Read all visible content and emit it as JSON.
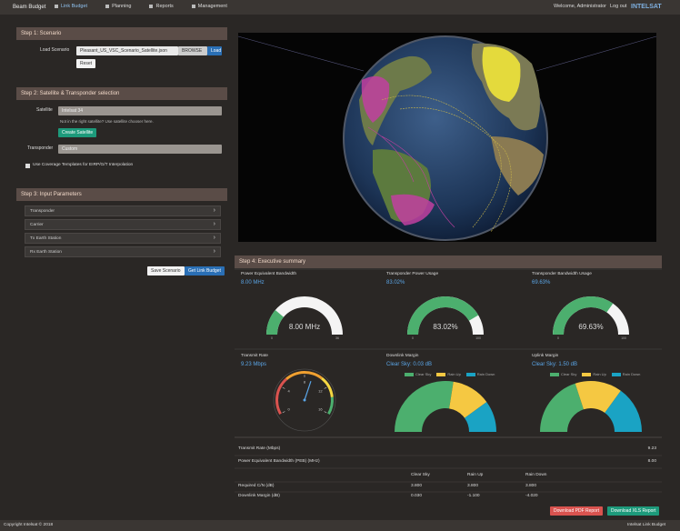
{
  "nav": {
    "brand": "Beam Budget",
    "items": [
      "Link Budget",
      "Planning",
      "Reports",
      "Management"
    ],
    "user": "Welcome, Administrator",
    "logout": "Log out",
    "logo": "INTELSAT"
  },
  "step1": {
    "title": "Step 1: Scenario",
    "label": "Load Scenario",
    "file": "Pleasant_US_VSC_Scenario_Satellite.json",
    "browse": "BROWSE",
    "load": "Load",
    "reset": "Reset"
  },
  "step2": {
    "title": "Step 2: Satellite & Transponder selection",
    "satellite_label": "Satellite",
    "satellite": "Intelsat 34",
    "hint": "Not in the right satellite? Use satellite chooser here.",
    "create": "Create Satellite",
    "transponder_label": "Transponder",
    "transponder": "Custom",
    "checkbox": "Use Coverage Templates for EIRP/G/T Interpolation"
  },
  "step3": {
    "title": "Step 3: Input Parameters",
    "rows": [
      "Transponder",
      "Carrier",
      "Tx Earth Station",
      "Rx Earth Station"
    ],
    "save": "Save Scenario",
    "get": "Get Link Budget"
  },
  "step4": {
    "title": "Step 4: Executive summary",
    "gauges": [
      {
        "title": "Power Equivalent Bandwidth",
        "value": 8,
        "value_label": "8.00 MHz",
        "min": 0,
        "max": 36
      },
      {
        "title": "Transponder Power Usage",
        "value": 83.02,
        "value_label": "83.02%",
        "min": 0,
        "max": 100
      },
      {
        "title": "Transponder Bandwidth Usage",
        "value": 69.63,
        "value_label": "69.63%",
        "min": 0,
        "max": 100
      }
    ],
    "rate": {
      "title": "Transmit Rate",
      "value": 9.23,
      "value_label": "9.23 Mbps",
      "min": 0,
      "max": 16,
      "ticks": [
        0,
        4,
        8,
        12,
        16
      ]
    },
    "margins": [
      {
        "title": "Downlink Margin",
        "value_label": "Clear Sky: 0.03 dB",
        "legend": [
          "Clear Sky",
          "Rain Up",
          "Rain Down"
        ],
        "colors": [
          "#4caf6e",
          "#f5c842",
          "#1aa3c4"
        ],
        "values": [
          55,
          25,
          20
        ]
      },
      {
        "title": "Uplink Margin",
        "value_label": "Clear Sky: 1.50 dB",
        "legend": [
          "Clear Sky",
          "Rain Up",
          "Rain Down"
        ],
        "colors": [
          "#4caf6e",
          "#f5c842",
          "#1aa3c4"
        ],
        "values": [
          40,
          30,
          30
        ]
      }
    ]
  },
  "table": {
    "summary": [
      {
        "label": "Transmit Rate (Mbps)",
        "value": "9.23"
      },
      {
        "label": "Power Equivalent Bandwidth (PEB) (MHz)",
        "value": "8.00"
      }
    ],
    "header": [
      "Clear Sky",
      "Rain Up",
      "Rain Down"
    ],
    "rows": [
      {
        "label": "Required C/N (dB)",
        "values": [
          "3.800",
          "3.800",
          "3.800"
        ]
      },
      {
        "label": "Downlink Margin (dB)",
        "values": [
          "0.030",
          "-1.100",
          "-4.020"
        ]
      }
    ]
  },
  "buttons": {
    "pdf": "Download PDF Report",
    "xls": "Download XLS Report"
  },
  "footer": {
    "left": "Copyright Intelsat © 2018",
    "right": "Intelsat Link Budget"
  }
}
